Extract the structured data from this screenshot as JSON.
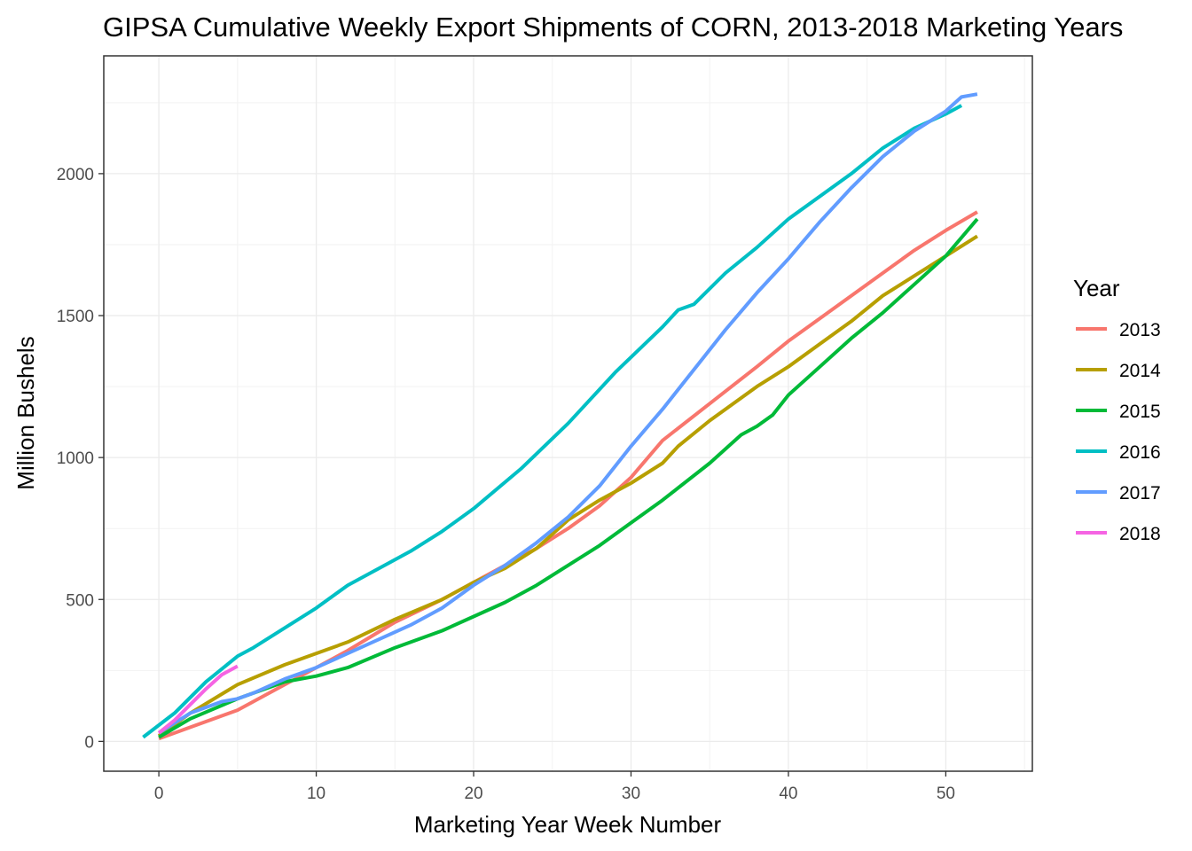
{
  "chart_data": {
    "type": "line",
    "title": "GIPSA Cumulative Weekly Export Shipments of CORN, 2013-2018 Marketing Years",
    "xlabel": "Marketing Year Week Number",
    "ylabel": "Million Bushels",
    "xlim": [
      -3.5,
      55.5
    ],
    "ylim": [
      -105,
      2415
    ],
    "x_ticks": [
      0,
      10,
      20,
      30,
      40,
      50
    ],
    "y_ticks": [
      0,
      500,
      1000,
      1500,
      2000
    ],
    "x_tick_labels": [
      "0",
      "10",
      "20",
      "30",
      "40",
      "50"
    ],
    "y_tick_labels": [
      "0",
      "500",
      "1000",
      "1500",
      "2000"
    ],
    "grid": true,
    "legend": {
      "title": "Year",
      "position": "right"
    },
    "series": [
      {
        "name": "2013",
        "color": "#F8766D",
        "x": [
          0,
          2,
          5,
          8,
          10,
          12,
          15,
          18,
          20,
          22,
          24,
          26,
          28,
          30,
          32,
          35,
          38,
          40,
          42,
          44,
          46,
          48,
          50,
          52
        ],
        "y": [
          10,
          50,
          110,
          200,
          260,
          320,
          420,
          500,
          560,
          620,
          680,
          750,
          830,
          930,
          1060,
          1190,
          1320,
          1410,
          1490,
          1570,
          1650,
          1730,
          1800,
          1865
        ]
      },
      {
        "name": "2014",
        "color": "#B79F00",
        "x": [
          0,
          2,
          5,
          8,
          10,
          12,
          15,
          18,
          20,
          22,
          24,
          26,
          28,
          30,
          32,
          33,
          35,
          38,
          40,
          42,
          44,
          46,
          48,
          50,
          52
        ],
        "y": [
          20,
          100,
          200,
          270,
          310,
          350,
          430,
          500,
          560,
          610,
          680,
          780,
          850,
          910,
          980,
          1040,
          1130,
          1250,
          1320,
          1400,
          1480,
          1570,
          1640,
          1710,
          1780
        ]
      },
      {
        "name": "2015",
        "color": "#00BA38",
        "x": [
          0,
          2,
          5,
          8,
          10,
          12,
          15,
          18,
          20,
          22,
          24,
          26,
          28,
          30,
          32,
          35,
          37,
          38,
          39,
          40,
          42,
          44,
          46,
          48,
          50,
          52
        ],
        "y": [
          15,
          80,
          150,
          210,
          230,
          260,
          330,
          390,
          440,
          490,
          550,
          620,
          690,
          770,
          850,
          980,
          1080,
          1110,
          1150,
          1220,
          1320,
          1420,
          1510,
          1610,
          1710,
          1840
        ]
      },
      {
        "name": "2016",
        "color": "#00BFC4",
        "x": [
          -1,
          1,
          3,
          5,
          6,
          8,
          10,
          12,
          14,
          16,
          18,
          20,
          23,
          26,
          29,
          32,
          33,
          34,
          36,
          38,
          40,
          42,
          44,
          46,
          48,
          50,
          51
        ],
        "y": [
          15,
          100,
          210,
          300,
          330,
          400,
          470,
          550,
          610,
          670,
          740,
          820,
          960,
          1120,
          1300,
          1460,
          1520,
          1540,
          1650,
          1740,
          1840,
          1920,
          2000,
          2090,
          2160,
          2210,
          2240
        ]
      },
      {
        "name": "2017",
        "color": "#619CFF",
        "x": [
          0,
          2,
          4,
          5,
          6,
          8,
          10,
          12,
          14,
          16,
          18,
          20,
          22,
          24,
          26,
          28,
          30,
          32,
          34,
          36,
          38,
          40,
          42,
          44,
          46,
          48,
          50,
          51,
          52
        ],
        "y": [
          30,
          100,
          140,
          150,
          170,
          220,
          260,
          310,
          360,
          410,
          470,
          550,
          620,
          700,
          790,
          900,
          1040,
          1170,
          1310,
          1450,
          1580,
          1700,
          1830,
          1950,
          2060,
          2150,
          2220,
          2270,
          2280
        ]
      },
      {
        "name": "2018",
        "color": "#F564E3",
        "x": [
          0,
          1,
          2,
          3,
          4,
          5
        ],
        "y": [
          30,
          75,
          130,
          185,
          235,
          265
        ]
      }
    ]
  }
}
